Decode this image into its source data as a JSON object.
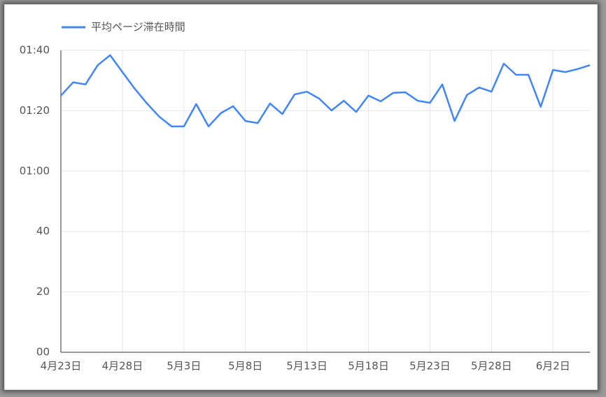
{
  "chart_data": {
    "type": "line",
    "categories": [
      "4月23日",
      null,
      null,
      null,
      null,
      "4月28日",
      null,
      null,
      null,
      null,
      "5月3日",
      null,
      null,
      null,
      null,
      "5月8日",
      null,
      null,
      null,
      null,
      "5月13日",
      null,
      null,
      null,
      null,
      "5月18日",
      null,
      null,
      null,
      null,
      "5月23日",
      null,
      null,
      null,
      null,
      "5月28日",
      null,
      null,
      null,
      null,
      "6月2日",
      null,
      null,
      null
    ],
    "series": [
      {
        "name": "平均ページ滞在時間",
        "color": "#4285f4",
        "values": [
          85,
          89.4,
          88.7,
          95.1,
          98.4,
          92.8,
          87.3,
          82.4,
          78,
          74.8,
          74.8,
          82.2,
          74.8,
          79.2,
          81.5,
          76.6,
          75.9,
          82.4,
          78.9,
          85.4,
          86.3,
          84,
          80.1,
          83.3,
          79.6,
          85,
          83.1,
          85.9,
          86.1,
          83.3,
          82.6,
          88.7,
          76.6,
          85.2,
          87.7,
          86.3,
          95.6,
          91.9,
          91.9,
          81.3,
          93.5,
          92.8,
          93.8,
          95.1
        ]
      }
    ],
    "ylim": [
      0,
      100
    ],
    "yticks": [
      {
        "value": 0,
        "label": "00"
      },
      20,
      40,
      {
        "value": 60,
        "label": "01:00"
      },
      {
        "value": 80,
        "label": "01:20"
      },
      {
        "value": 100,
        "label": "01:40"
      }
    ],
    "grid": true,
    "legend": "top-left"
  }
}
